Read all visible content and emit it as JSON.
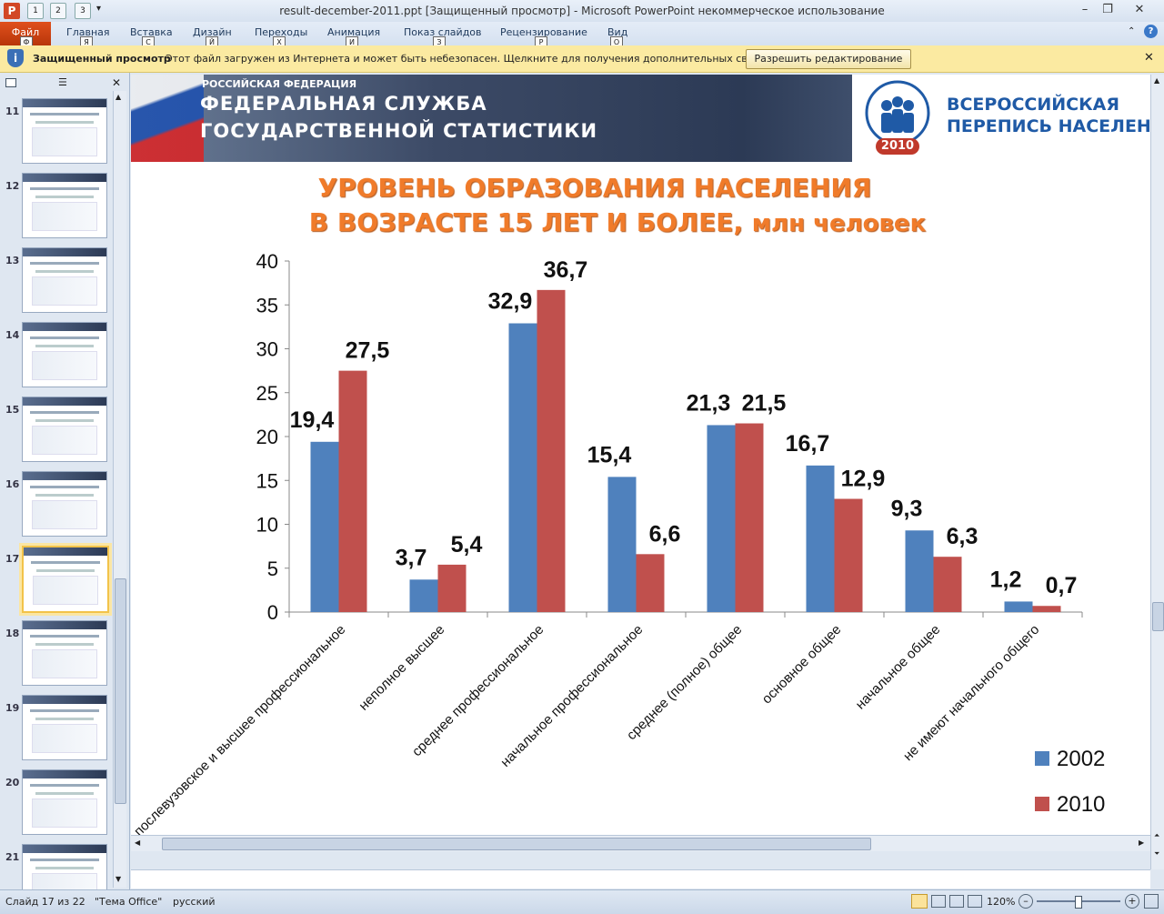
{
  "window": {
    "title": "result-december-2011.ppt [Защищенный просмотр]  -  Microsoft PowerPoint некоммерческое использование",
    "quick_access_keys": [
      "1",
      "2",
      "3"
    ]
  },
  "ribbon": {
    "file_tab": "Файл",
    "tabs": [
      {
        "label": "Главная",
        "key": "Я"
      },
      {
        "label": "Вставка",
        "key": "С"
      },
      {
        "label": "Дизайн",
        "key": "Й"
      },
      {
        "label": "Переходы",
        "key": "Х"
      },
      {
        "label": "Анимация",
        "key": "И"
      },
      {
        "label": "Показ слайдов",
        "key": "З"
      },
      {
        "label": "Рецензирование",
        "key": "Р"
      },
      {
        "label": "Вид",
        "key": "О"
      }
    ],
    "file_key": "Ф"
  },
  "protected_view": {
    "label": "Защищенный просмотр",
    "message": "Этот файл загружен из Интернета и может быть небезопасен. Щелкните для получения дополнительных сведений.",
    "enable_button": "Разрешить редактирование"
  },
  "thumbnails": [
    {
      "num": "11"
    },
    {
      "num": "12"
    },
    {
      "num": "13"
    },
    {
      "num": "14"
    },
    {
      "num": "15"
    },
    {
      "num": "16"
    },
    {
      "num": "17"
    },
    {
      "num": "18"
    },
    {
      "num": "19"
    },
    {
      "num": "20"
    },
    {
      "num": "21"
    }
  ],
  "slide": {
    "banner": {
      "line1": "РОССИЙСКАЯ ФЕДЕРАЦИЯ",
      "line2": "ФЕДЕРАЛЬНАЯ СЛУЖБА",
      "line3": "ГОСУДАРСТВЕННОЙ СТАТИСТИКИ",
      "census_line1": "ВСЕРОССИЙСКАЯ",
      "census_line2": "ПЕРЕПИСЬ НАСЕЛЕНИЯ",
      "census_year": "2010"
    },
    "title_line1": "УРОВЕНЬ ОБРАЗОВАНИЯ НАСЕЛЕНИЯ",
    "title_line2": "В ВОЗРАСТЕ 15 ЛЕТ И БОЛЕЕ,",
    "title_unit": "млн человек"
  },
  "chart_data": {
    "type": "bar",
    "title": "УРОВЕНЬ ОБРАЗОВАНИЯ НАСЕЛЕНИЯ В ВОЗРАСТЕ 15 ЛЕТ И БОЛЕЕ, млн человек",
    "categories": [
      "послевузовское и высшее профессиональное",
      "неполное высшее",
      "среднее профессиональное",
      "начальное профессиональное",
      "среднее (полное) общее",
      "основное общее",
      "начальное общее",
      "не имеют начального общего"
    ],
    "series": [
      {
        "name": "2002",
        "values": [
          19.4,
          3.7,
          32.9,
          15.4,
          21.3,
          16.7,
          9.3,
          1.2
        ],
        "labels": [
          "19,4",
          "3,7",
          "32,9",
          "15,4",
          "21,3",
          "16,7",
          "9,3",
          "1,2"
        ],
        "color": "#4f81bd"
      },
      {
        "name": "2010",
        "values": [
          27.5,
          5.4,
          36.7,
          6.6,
          21.5,
          12.9,
          6.3,
          0.7
        ],
        "labels": [
          "27,5",
          "5,4",
          "36,7",
          "6,6",
          "21,5",
          "12,9",
          "6,3",
          "0,7"
        ],
        "color": "#c0504d"
      }
    ],
    "ylim": [
      0,
      40
    ],
    "yticks": [
      "0",
      "5",
      "10",
      "15",
      "20",
      "25",
      "30",
      "35",
      "40"
    ],
    "legend": "right"
  },
  "status": {
    "slide_info": "Слайд 17 из 22",
    "theme": "\"Тема Office\"",
    "language": "русский",
    "zoom": "120%"
  }
}
